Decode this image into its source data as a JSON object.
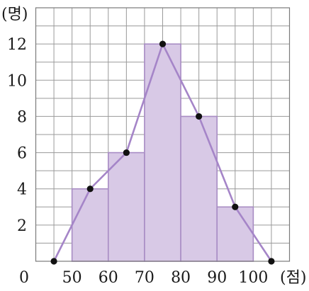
{
  "chart_data": {
    "type": "bar",
    "subtype": "histogram_with_frequency_polygon",
    "bins": [
      {
        "from": 50,
        "to": 60,
        "count": 4
      },
      {
        "from": 60,
        "to": 70,
        "count": 6
      },
      {
        "from": 70,
        "to": 80,
        "count": 12
      },
      {
        "from": 80,
        "to": 90,
        "count": 8
      },
      {
        "from": 90,
        "to": 100,
        "count": 3
      }
    ],
    "polygon_points": [
      {
        "x": 45,
        "y": 0
      },
      {
        "x": 55,
        "y": 4
      },
      {
        "x": 65,
        "y": 6
      },
      {
        "x": 75,
        "y": 12
      },
      {
        "x": 85,
        "y": 8
      },
      {
        "x": 95,
        "y": 3
      },
      {
        "x": 105,
        "y": 0
      }
    ],
    "x_ticks": [
      "50",
      "60",
      "70",
      "80",
      "90",
      "100"
    ],
    "y_ticks": [
      "2",
      "4",
      "6",
      "8",
      "10",
      "12"
    ],
    "origin_label": "0",
    "x_unit": "(점)",
    "y_unit": "(명)",
    "xlim": [
      40,
      110
    ],
    "ylim": [
      0,
      14
    ],
    "grid": true,
    "colors": {
      "bar_fill": "#d8c9e6",
      "bar_stroke": "#a88cc4",
      "polygon_line": "#a585c8",
      "point": "#111111"
    }
  }
}
